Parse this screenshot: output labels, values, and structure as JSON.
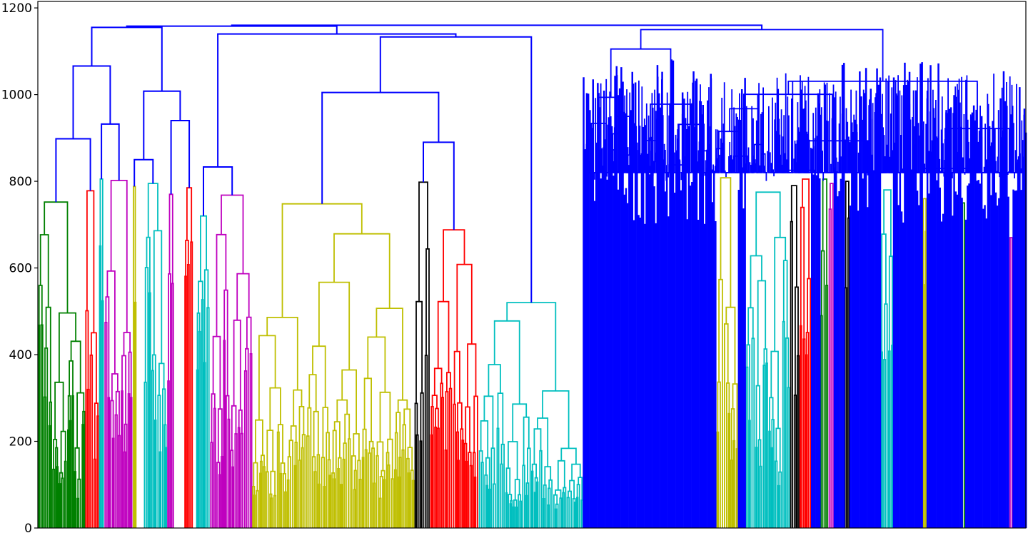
{
  "chart_data": {
    "type": "dendrogram",
    "title": "",
    "xlabel": "",
    "ylabel": "",
    "ylim": [
      0,
      1215
    ],
    "yticks": [
      0,
      200,
      400,
      600,
      800,
      1000,
      1200
    ],
    "ytick_labels": [
      "0",
      "200",
      "400",
      "600",
      "800",
      "1000",
      "1200"
    ],
    "xticks_visible": false,
    "grid": false,
    "link_color_above_threshold": "#0000ff",
    "clusters": [
      {
        "color": "#008000",
        "start": 0.0,
        "end": 0.048,
        "top": 752
      },
      {
        "color": "#ff0000",
        "start": 0.048,
        "end": 0.062,
        "top": 778
      },
      {
        "color": "#00bfbf",
        "start": 0.062,
        "end": 0.067,
        "top": 805
      },
      {
        "color": "#bf00bf",
        "start": 0.067,
        "end": 0.096,
        "top": 802
      },
      {
        "color": "#bfbf00",
        "start": 0.096,
        "end": 0.1,
        "top": 788
      },
      {
        "color": "#00bfbf",
        "start": 0.107,
        "end": 0.131,
        "top": 795
      },
      {
        "color": "#bf00bf",
        "start": 0.131,
        "end": 0.138,
        "top": 770
      },
      {
        "color": "#ff0000",
        "start": 0.148,
        "end": 0.157,
        "top": 785
      },
      {
        "color": "#00bfbf",
        "start": 0.16,
        "end": 0.174,
        "top": 720
      },
      {
        "color": "#bf00bf",
        "start": 0.174,
        "end": 0.217,
        "top": 768
      },
      {
        "color": "#bfbf00",
        "start": 0.217,
        "end": 0.381,
        "top": 748
      },
      {
        "color": "#000000",
        "start": 0.381,
        "end": 0.397,
        "top": 798
      },
      {
        "color": "#ff0000",
        "start": 0.397,
        "end": 0.446,
        "top": 688
      },
      {
        "color": "#00bfbf",
        "start": 0.446,
        "end": 0.552,
        "top": 520
      },
      {
        "color": "#bfbf00",
        "start": 0.687,
        "end": 0.709,
        "top": 808
      },
      {
        "color": "#00bfbf",
        "start": 0.716,
        "end": 0.761,
        "top": 775
      },
      {
        "color": "#000000",
        "start": 0.761,
        "end": 0.771,
        "top": 790
      },
      {
        "color": "#ff0000",
        "start": 0.771,
        "end": 0.783,
        "top": 805
      },
      {
        "color": "#008000",
        "start": 0.792,
        "end": 0.8,
        "top": 805
      },
      {
        "color": "#bf00bf",
        "start": 0.8,
        "end": 0.806,
        "top": 795
      },
      {
        "color": "#000000",
        "start": 0.816,
        "end": 0.822,
        "top": 800
      },
      {
        "color": "#00bfbf",
        "start": 0.853,
        "end": 0.866,
        "top": 780
      },
      {
        "color": "#bfbf00",
        "start": 0.895,
        "end": 0.9,
        "top": 760
      },
      {
        "color": "#008000",
        "start": 0.935,
        "end": 0.939,
        "top": 750
      },
      {
        "color": "#bf00bf",
        "start": 0.983,
        "end": 0.987,
        "top": 670
      }
    ]
  }
}
